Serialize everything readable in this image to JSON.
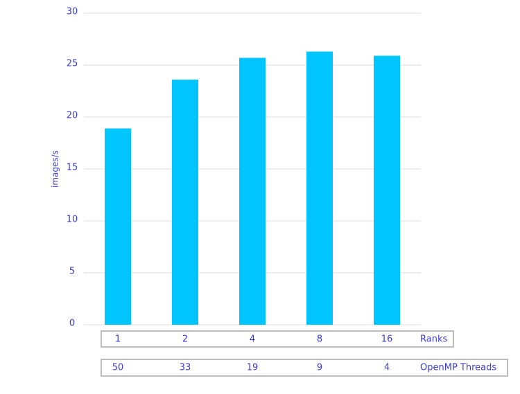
{
  "chart_data": {
    "type": "bar",
    "y_label": "images/s",
    "categories": [
      "1",
      "2",
      "4",
      "8",
      "16"
    ],
    "categories_label": "Ranks",
    "threads": [
      "50",
      "33",
      "19",
      "9",
      "4"
    ],
    "threads_label": "OpenMP Threads",
    "values": [
      18.9,
      23.6,
      25.7,
      26.3,
      25.9
    ],
    "color": "#00c5ff",
    "ylim": [
      0,
      30
    ],
    "yticks": [
      0,
      5,
      10,
      15,
      20,
      25,
      30
    ],
    "grid": true
  }
}
